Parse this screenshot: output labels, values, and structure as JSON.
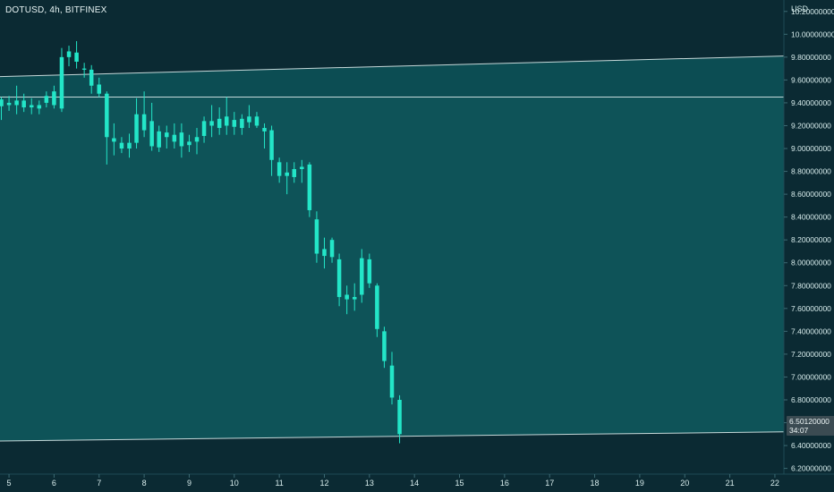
{
  "symbol": {
    "label": "DOTUSD, 4h, BITFINEX"
  },
  "currency": "USD",
  "last_price": {
    "value": "6.50120000",
    "countdown": "34:07"
  },
  "colors": {
    "background": "#0b2a33",
    "channel_fill": "#0f5a5f",
    "candle": "#23e6c8",
    "line": "#e6f3f3"
  },
  "chart_data": {
    "type": "candlestick",
    "title": "",
    "x_ticks": [
      "5",
      "6",
      "7",
      "8",
      "9",
      "10",
      "11",
      "12",
      "13",
      "14",
      "15",
      "16",
      "17",
      "18",
      "19",
      "20",
      "21",
      "22"
    ],
    "y_ticks": [
      "10.20000000",
      "10.00000000",
      "9.80000000",
      "9.60000000",
      "9.40000000",
      "9.20000000",
      "9.00000000",
      "8.80000000",
      "8.60000000",
      "8.40000000",
      "8.20000000",
      "8.00000000",
      "7.80000000",
      "7.60000000",
      "7.40000000",
      "7.20000000",
      "7.00000000",
      "6.80000000",
      "6.60000000",
      "6.40000000",
      "6.20000000"
    ],
    "ylim": [
      6.15,
      10.3
    ],
    "xlim": [
      4.8,
      22.2
    ],
    "trendlines": [
      {
        "from": [
          4.8,
          9.63
        ],
        "to": [
          22.2,
          9.81
        ]
      },
      {
        "from": [
          4.8,
          9.45
        ],
        "to": [
          22.2,
          9.45
        ]
      },
      {
        "from": [
          4.8,
          6.44
        ],
        "to": [
          22.2,
          6.52
        ]
      }
    ],
    "candles": [
      {
        "x": 4.83,
        "o": 9.37,
        "h": 9.45,
        "l": 9.25,
        "c": 9.43
      },
      {
        "x": 5.0,
        "o": 9.4,
        "h": 9.46,
        "l": 9.33,
        "c": 9.38
      },
      {
        "x": 5.17,
        "o": 9.38,
        "h": 9.55,
        "l": 9.3,
        "c": 9.42
      },
      {
        "x": 5.33,
        "o": 9.42,
        "h": 9.48,
        "l": 9.32,
        "c": 9.36
      },
      {
        "x": 5.5,
        "o": 9.36,
        "h": 9.44,
        "l": 9.3,
        "c": 9.38
      },
      {
        "x": 5.67,
        "o": 9.35,
        "h": 9.42,
        "l": 9.3,
        "c": 9.38
      },
      {
        "x": 5.83,
        "o": 9.4,
        "h": 9.5,
        "l": 9.36,
        "c": 9.46
      },
      {
        "x": 6.0,
        "o": 9.38,
        "h": 9.55,
        "l": 9.35,
        "c": 9.5
      },
      {
        "x": 6.17,
        "o": 9.35,
        "h": 9.88,
        "l": 9.32,
        "c": 9.8
      },
      {
        "x": 6.33,
        "o": 9.8,
        "h": 9.9,
        "l": 9.72,
        "c": 9.85
      },
      {
        "x": 6.5,
        "o": 9.84,
        "h": 9.94,
        "l": 9.7,
        "c": 9.76
      },
      {
        "x": 6.67,
        "o": 9.69,
        "h": 9.75,
        "l": 9.62,
        "c": 9.7
      },
      {
        "x": 6.83,
        "o": 9.69,
        "h": 9.73,
        "l": 9.48,
        "c": 9.55
      },
      {
        "x": 7.0,
        "o": 9.56,
        "h": 9.62,
        "l": 9.45,
        "c": 9.48
      },
      {
        "x": 7.17,
        "o": 9.48,
        "h": 9.5,
        "l": 8.86,
        "c": 9.1
      },
      {
        "x": 7.33,
        "o": 9.09,
        "h": 9.22,
        "l": 8.94,
        "c": 9.06
      },
      {
        "x": 7.5,
        "o": 9.05,
        "h": 9.1,
        "l": 8.96,
        "c": 9.0
      },
      {
        "x": 7.67,
        "o": 9.0,
        "h": 9.13,
        "l": 8.92,
        "c": 9.05
      },
      {
        "x": 7.83,
        "o": 9.05,
        "h": 9.44,
        "l": 9.0,
        "c": 9.3
      },
      {
        "x": 8.0,
        "o": 9.3,
        "h": 9.5,
        "l": 9.1,
        "c": 9.16
      },
      {
        "x": 8.17,
        "o": 9.24,
        "h": 9.4,
        "l": 8.98,
        "c": 9.02
      },
      {
        "x": 8.33,
        "o": 9.01,
        "h": 9.2,
        "l": 8.97,
        "c": 9.15
      },
      {
        "x": 8.5,
        "o": 9.14,
        "h": 9.2,
        "l": 9.0,
        "c": 9.1
      },
      {
        "x": 8.67,
        "o": 9.12,
        "h": 9.22,
        "l": 9.0,
        "c": 9.06
      },
      {
        "x": 8.83,
        "o": 9.14,
        "h": 9.22,
        "l": 8.92,
        "c": 9.02
      },
      {
        "x": 9.0,
        "o": 9.03,
        "h": 9.12,
        "l": 8.97,
        "c": 9.06
      },
      {
        "x": 9.17,
        "o": 9.06,
        "h": 9.18,
        "l": 8.95,
        "c": 9.1
      },
      {
        "x": 9.33,
        "o": 9.11,
        "h": 9.28,
        "l": 9.05,
        "c": 9.24
      },
      {
        "x": 9.5,
        "o": 9.24,
        "h": 9.38,
        "l": 9.1,
        "c": 9.2
      },
      {
        "x": 9.67,
        "o": 9.18,
        "h": 9.36,
        "l": 9.12,
        "c": 9.26
      },
      {
        "x": 9.83,
        "o": 9.28,
        "h": 9.45,
        "l": 9.12,
        "c": 9.2
      },
      {
        "x": 10.0,
        "o": 9.19,
        "h": 9.32,
        "l": 9.12,
        "c": 9.25
      },
      {
        "x": 10.17,
        "o": 9.26,
        "h": 9.3,
        "l": 9.12,
        "c": 9.18
      },
      {
        "x": 10.33,
        "o": 9.23,
        "h": 9.38,
        "l": 9.18,
        "c": 9.28
      },
      {
        "x": 10.5,
        "o": 9.28,
        "h": 9.32,
        "l": 9.18,
        "c": 9.2
      },
      {
        "x": 10.67,
        "o": 9.18,
        "h": 9.22,
        "l": 9.0,
        "c": 9.15
      },
      {
        "x": 10.83,
        "o": 9.16,
        "h": 9.2,
        "l": 8.76,
        "c": 8.9
      },
      {
        "x": 11.0,
        "o": 8.88,
        "h": 8.92,
        "l": 8.7,
        "c": 8.76
      },
      {
        "x": 11.17,
        "o": 8.79,
        "h": 8.88,
        "l": 8.6,
        "c": 8.76
      },
      {
        "x": 11.33,
        "o": 8.75,
        "h": 8.88,
        "l": 8.7,
        "c": 8.82
      },
      {
        "x": 11.5,
        "o": 8.84,
        "h": 8.9,
        "l": 8.7,
        "c": 8.82
      },
      {
        "x": 11.67,
        "o": 8.86,
        "h": 8.88,
        "l": 8.4,
        "c": 8.46
      },
      {
        "x": 11.83,
        "o": 8.38,
        "h": 8.45,
        "l": 8.0,
        "c": 8.08
      },
      {
        "x": 12.0,
        "o": 8.06,
        "h": 8.22,
        "l": 7.95,
        "c": 8.12
      },
      {
        "x": 12.17,
        "o": 8.2,
        "h": 8.22,
        "l": 8.0,
        "c": 8.05
      },
      {
        "x": 12.33,
        "o": 8.03,
        "h": 8.08,
        "l": 7.62,
        "c": 7.7
      },
      {
        "x": 12.5,
        "o": 7.72,
        "h": 7.8,
        "l": 7.55,
        "c": 7.68
      },
      {
        "x": 12.67,
        "o": 7.68,
        "h": 7.82,
        "l": 7.58,
        "c": 7.7
      },
      {
        "x": 12.83,
        "o": 7.72,
        "h": 8.12,
        "l": 7.65,
        "c": 8.04
      },
      {
        "x": 13.0,
        "o": 8.03,
        "h": 8.08,
        "l": 7.78,
        "c": 7.82
      },
      {
        "x": 13.17,
        "o": 7.8,
        "h": 7.82,
        "l": 7.35,
        "c": 7.42
      },
      {
        "x": 13.33,
        "o": 7.4,
        "h": 7.44,
        "l": 7.08,
        "c": 7.14
      },
      {
        "x": 13.5,
        "o": 7.1,
        "h": 7.22,
        "l": 6.76,
        "c": 6.82
      },
      {
        "x": 13.67,
        "o": 6.8,
        "h": 6.84,
        "l": 6.42,
        "c": 6.5
      }
    ]
  }
}
